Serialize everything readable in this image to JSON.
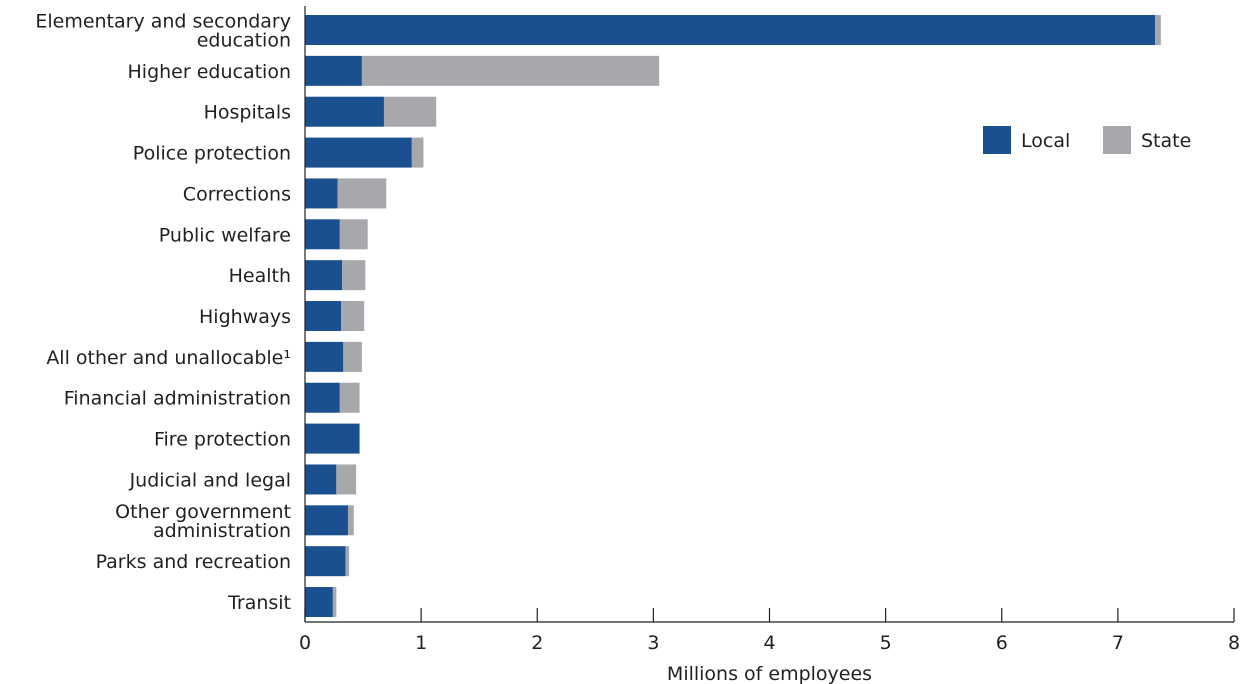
{
  "chart_data": {
    "type": "bar",
    "orientation": "horizontal",
    "stacked": true,
    "categories": [
      [
        "Elementary and secondary",
        "education"
      ],
      [
        "Higher education"
      ],
      [
        "Hospitals"
      ],
      [
        "Police protection"
      ],
      [
        "Corrections"
      ],
      [
        "Public welfare"
      ],
      [
        "Health"
      ],
      [
        "Highways"
      ],
      [
        "All other and unallocable¹"
      ],
      [
        "Financial administration"
      ],
      [
        "Fire protection"
      ],
      [
        "Judicial and legal"
      ],
      [
        "Other government",
        "administration"
      ],
      [
        "Parks and recreation"
      ],
      [
        "Transit"
      ]
    ],
    "series": [
      {
        "name": "Local",
        "color": "#1b5090",
        "values": [
          7.32,
          0.49,
          0.68,
          0.92,
          0.28,
          0.3,
          0.32,
          0.31,
          0.33,
          0.3,
          0.47,
          0.27,
          0.37,
          0.35,
          0.24
        ]
      },
      {
        "name": "State",
        "color": "#a7a8ab",
        "values": [
          0.05,
          2.56,
          0.45,
          0.1,
          0.42,
          0.24,
          0.2,
          0.2,
          0.16,
          0.17,
          0.0,
          0.17,
          0.05,
          0.03,
          0.03
        ]
      }
    ],
    "xlabel": "Millions of employees",
    "xlim": [
      0,
      8
    ],
    "xticks": [
      "0",
      "1",
      "2",
      "3",
      "4",
      "5",
      "6",
      "7",
      "8"
    ],
    "grid": false,
    "legend_position": "right"
  }
}
